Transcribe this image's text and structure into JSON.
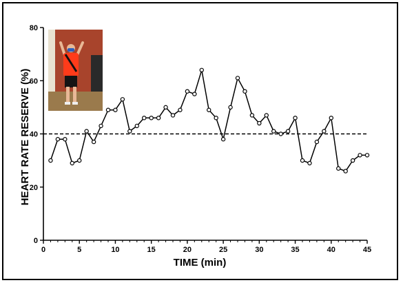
{
  "chart_data": {
    "type": "line",
    "title": "",
    "xlabel": "TIME (min)",
    "ylabel": "HEART RATE RESERVE (%)",
    "xlim": [
      0,
      45
    ],
    "ylim": [
      0,
      80
    ],
    "xticks": [
      0,
      5,
      10,
      15,
      20,
      25,
      30,
      35,
      40,
      45
    ],
    "yticks": [
      0,
      20,
      40,
      60,
      80
    ],
    "grid": false,
    "legend": "none",
    "marker": "open-circle",
    "reference_line": {
      "y": 40,
      "style": "dashed"
    },
    "inset_photo": "person wearing face mask and heart-rate harness, arms raised",
    "series": [
      {
        "x": [
          1,
          2,
          3,
          4,
          5,
          6,
          7,
          8,
          9,
          10,
          11,
          12,
          13,
          14,
          15,
          16,
          17,
          18,
          19,
          20,
          21,
          22,
          23,
          24,
          25,
          26,
          27,
          28,
          29,
          30,
          31,
          32,
          33,
          34,
          35,
          36,
          37,
          38,
          39,
          40,
          41,
          42,
          43,
          44,
          45
        ],
        "values": [
          30,
          38,
          38,
          29,
          30,
          41,
          37,
          43,
          49,
          49,
          53,
          41,
          43,
          46,
          46,
          46,
          50,
          47,
          49,
          56,
          55,
          64,
          49,
          46,
          38,
          50,
          61,
          56,
          47,
          44,
          47,
          41,
          40,
          41,
          46,
          30,
          29,
          37,
          41,
          46,
          27,
          26,
          30,
          32,
          32
        ]
      }
    ]
  },
  "colors": {
    "line": "#000000",
    "marker_fill": "#ffffff",
    "photo_wall": "#a8442c",
    "photo_shirt": "#ff3b1a",
    "photo_shorts": "#141414",
    "photo_floor": "#9a7a4c"
  }
}
